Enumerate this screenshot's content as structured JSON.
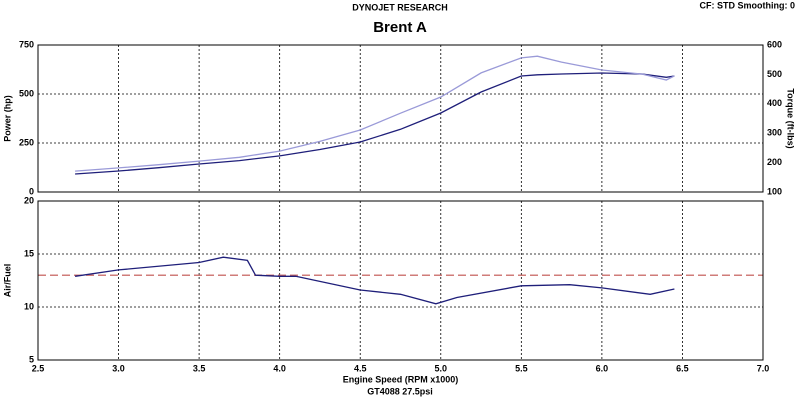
{
  "header": {
    "source": "DYNOJET RESEARCH",
    "title": "Brent A",
    "settings": "CF: STD  Smoothing: 0"
  },
  "footer": "GT4088 27.5psi",
  "chart_data": [
    {
      "type": "line",
      "grid": true,
      "ylabel": "Power (hp)",
      "y2label": "Torque (ft-lbs)",
      "x": [
        2.73,
        3.0,
        3.25,
        3.5,
        3.75,
        4.0,
        4.25,
        4.5,
        4.75,
        5.0,
        5.25,
        5.5,
        5.6,
        5.75,
        6.0,
        6.25,
        6.4,
        6.45
      ],
      "xlim": [
        2.5,
        7
      ],
      "xticks": [
        2.5,
        3,
        3.5,
        4,
        4.5,
        5,
        5.5,
        6,
        6.5,
        7
      ],
      "ylim": [
        0,
        750
      ],
      "yticks": [
        0,
        250,
        500,
        750
      ],
      "y2lim": [
        100,
        600
      ],
      "y2ticks": [
        100,
        200,
        300,
        400,
        500,
        600
      ],
      "series": [
        {
          "color": "#1f1f7a",
          "values": [
            92,
            107,
            124,
            143,
            160,
            184,
            217,
            255,
            320,
            403,
            510,
            592,
            598,
            602,
            607,
            602,
            585,
            592
          ]
        },
        {
          "color": "#9a9ad8",
          "axis": "y2",
          "values": [
            171,
            182,
            193,
            205,
            218,
            239,
            272,
            311,
            368,
            423,
            505,
            556,
            562,
            542,
            515,
            501,
            481,
            495
          ]
        }
      ]
    },
    {
      "type": "line",
      "grid": true,
      "ylabel": "Air/Fuel",
      "xlabel": "Engine Speed (RPM x1000)",
      "x": [
        2.73,
        3.0,
        3.5,
        3.65,
        3.8,
        3.85,
        4.0,
        4.1,
        4.5,
        4.75,
        4.97,
        5.1,
        5.5,
        5.8,
        6.0,
        6.3,
        6.45
      ],
      "xlim": [
        2.5,
        7
      ],
      "xticks": [
        2.5,
        {
          "value": 3,
          "label": "3.0"
        },
        3.5,
        {
          "value": 4,
          "label": "4.0"
        },
        4.5,
        {
          "value": 5,
          "label": "5.0"
        },
        5.5,
        {
          "value": 6,
          "label": "6.0"
        },
        6.5,
        {
          "value": 7,
          "label": "7.0"
        }
      ],
      "ylim": [
        5,
        20
      ],
      "yticks": [
        5,
        10,
        15,
        20
      ],
      "hline": {
        "value": 13,
        "color": "#c0504d"
      },
      "series": [
        {
          "color": "#1f1f7a",
          "values": [
            12.9,
            13.5,
            14.2,
            14.7,
            14.4,
            13.0,
            12.9,
            12.9,
            11.6,
            11.2,
            10.3,
            10.9,
            12.0,
            12.1,
            11.8,
            11.2,
            11.7
          ]
        }
      ]
    }
  ]
}
